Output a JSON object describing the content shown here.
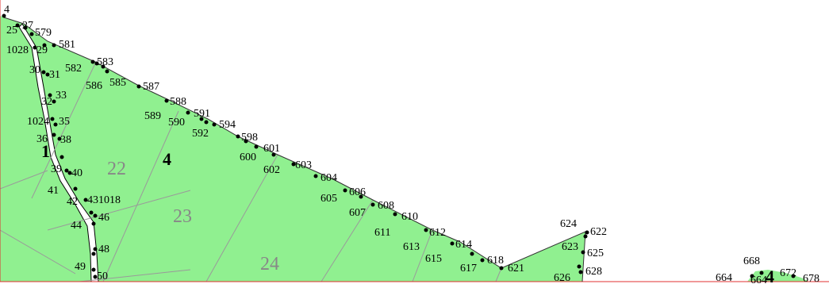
{
  "map": {
    "fill_color": "#90f090",
    "border_color": "#e03030",
    "parcel_line_color": "#999999",
    "zone_labels": [
      "1",
      "4",
      "4"
    ],
    "parcel_labels": [
      "22",
      "23",
      "24"
    ],
    "point_labels": [
      "4",
      "25",
      "27",
      "579",
      "1028",
      "29",
      "581",
      "582",
      "583",
      "30",
      "31",
      "586",
      "585",
      "587",
      "32",
      "33",
      "588",
      "589",
      "590",
      "591",
      "1024",
      "35",
      "592",
      "594",
      "598",
      "36",
      "38",
      "601",
      "600",
      "602",
      "603",
      "39",
      "40",
      "604",
      "41",
      "605",
      "606",
      "42",
      "431018",
      "607",
      "608",
      "46",
      "610",
      "44",
      "611",
      "612",
      "613",
      "614",
      "48",
      "615",
      "617",
      "618",
      "621",
      "49",
      "50",
      "624",
      "622",
      "623",
      "625",
      "626",
      "628",
      "668",
      "664",
      "672",
      "678",
      "664"
    ]
  }
}
